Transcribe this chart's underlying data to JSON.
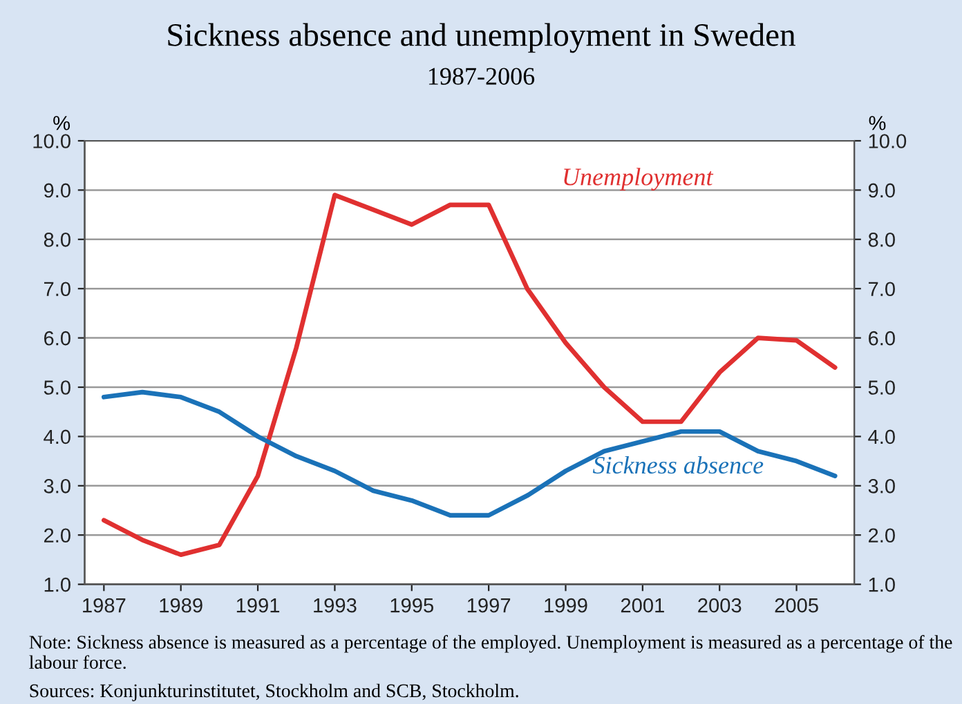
{
  "chart_data": {
    "type": "line",
    "title": "Sickness absence and unemployment in Sweden",
    "subtitle": "1987-2006",
    "ylabel": "%",
    "y2label": "%",
    "x": [
      1987,
      1988,
      1989,
      1990,
      1991,
      1992,
      1993,
      1994,
      1995,
      1996,
      1997,
      1998,
      1999,
      2000,
      2001,
      2002,
      2003,
      2004,
      2005,
      2006
    ],
    "series": [
      {
        "name": "Unemployment",
        "color": "#e03030",
        "values": [
          2.3,
          1.9,
          1.6,
          1.8,
          3.2,
          5.8,
          8.9,
          8.6,
          8.3,
          8.7,
          8.7,
          7.0,
          5.9,
          5.0,
          4.3,
          4.3,
          5.3,
          6.0,
          5.95,
          5.4
        ]
      },
      {
        "name": "Sickness absence",
        "color": "#1a72b8",
        "values": [
          4.8,
          4.9,
          4.8,
          4.5,
          4.0,
          3.6,
          3.3,
          2.9,
          2.7,
          2.4,
          2.4,
          2.8,
          3.3,
          3.7,
          3.9,
          4.1,
          4.1,
          3.7,
          3.5,
          3.2
        ]
      }
    ],
    "xlim": [
      1986.5,
      2006.5
    ],
    "xticks": [
      1987,
      1989,
      1991,
      1993,
      1995,
      1997,
      1999,
      2001,
      2003,
      2005
    ],
    "ylim": [
      1.0,
      10.0
    ],
    "yticks": [
      {
        "value": 1,
        "label": "1.0"
      },
      {
        "value": 2,
        "label": "2.0"
      },
      {
        "value": 3,
        "label": "3.0"
      },
      {
        "value": 4,
        "label": "4.0"
      },
      {
        "value": 5,
        "label": "5.0"
      },
      {
        "value": 6,
        "label": "6.0"
      },
      {
        "value": 7,
        "label": "7.0"
      },
      {
        "value": 8,
        "label": "8.0"
      },
      {
        "value": 9,
        "label": "9.0"
      },
      {
        "value": 10,
        "label": "10.0"
      }
    ],
    "y2lim": [
      1.0,
      10.0
    ],
    "y2ticks": [
      {
        "value": 1,
        "label": "1.0"
      },
      {
        "value": 2,
        "label": "2.0"
      },
      {
        "value": 3,
        "label": "3.0"
      },
      {
        "value": 4,
        "label": "4.0"
      },
      {
        "value": 5,
        "label": "5.0"
      },
      {
        "value": 6,
        "label": "6.0"
      },
      {
        "value": 7,
        "label": "7.0"
      },
      {
        "value": 8,
        "label": "8.0"
      },
      {
        "value": 9,
        "label": "9.0"
      },
      {
        "value": 10,
        "label": "10.0"
      }
    ],
    "grid": "y",
    "legend": false,
    "marker": "none",
    "line_style": "solid",
    "annotations": [
      "Note: Sickness absence is measured as a percentage of the employed. Unemployment is measured as a percentage of the labour force.",
      "Sources: Konjunkturinstitutet, Stockholm and SCB, Stockholm."
    ]
  }
}
